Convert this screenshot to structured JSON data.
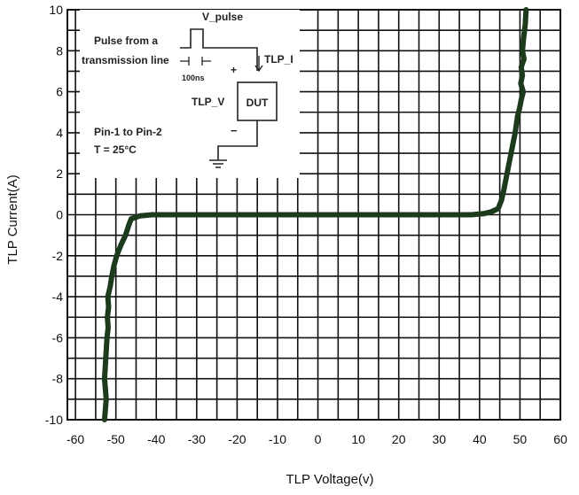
{
  "chart_data": {
    "type": "line",
    "xlabel": "TLP Voltage(v)",
    "ylabel": "TLP Current(A)",
    "xlim": [
      -62,
      60
    ],
    "ylim": [
      -10,
      10
    ],
    "xticks": [
      -60,
      -50,
      -40,
      -30,
      -20,
      -10,
      0,
      10,
      20,
      30,
      40,
      50,
      60
    ],
    "yticks": [
      10,
      8,
      6,
      4,
      2,
      0,
      -2,
      -4,
      -6,
      -8,
      -10
    ],
    "xtick_labels": [
      "-60",
      "-50",
      "-40",
      "-30",
      "-20",
      "-10",
      "0",
      "10",
      "20",
      "30",
      "40",
      "50",
      "60"
    ],
    "ytick_labels": [
      "10",
      "8",
      "6",
      "4",
      "2",
      "0",
      "-2",
      "-4",
      "-6",
      "-8",
      "-10"
    ],
    "x_minor_step": 5,
    "y_minor_step": 1,
    "grid": true,
    "line_color": "#1c3a1c",
    "series": [
      {
        "x": [
          -52.8,
          -52.4,
          -52.8,
          -52.5,
          -52.2,
          -51.9,
          -52.1,
          -51.8,
          -52.0,
          -51.4,
          -51.0,
          -50.5,
          -49.8,
          -48.8,
          -47.6,
          -46.8,
          -46.2,
          -44.0,
          -41.0,
          -38.0,
          -30.0,
          -20.0,
          -10.0,
          0.0,
          10.0,
          20.0,
          30.0,
          38.0,
          41.0,
          43.0,
          44.6,
          45.4,
          46.0,
          46.6,
          47.3,
          48.0,
          48.8,
          49.4,
          49.9,
          50.3,
          50.8,
          50.2,
          50.6,
          50.3,
          51.0,
          50.6,
          50.9,
          51.3,
          51.5
        ],
        "y": [
          -10.0,
          -9.0,
          -8.0,
          -7.0,
          -6.0,
          -5.5,
          -5.0,
          -4.5,
          -4.0,
          -3.5,
          -3.0,
          -2.5,
          -2.0,
          -1.5,
          -1.0,
          -0.5,
          -0.2,
          -0.05,
          0.0,
          0.0,
          0.0,
          0.0,
          0.0,
          0.0,
          0.0,
          0.0,
          0.0,
          0.0,
          0.05,
          0.15,
          0.3,
          0.7,
          1.2,
          1.8,
          2.5,
          3.2,
          4.0,
          4.8,
          5.2,
          5.6,
          6.0,
          6.4,
          6.8,
          7.2,
          7.6,
          8.0,
          8.6,
          9.3,
          10.0
        ]
      }
    ],
    "inset": {
      "title": "V_pulse",
      "source_label_1": "Pulse from a",
      "source_label_2": "transmission line",
      "pulse_width": "100ns",
      "current_label": "TLP_I",
      "voltage_label": "TLP_V",
      "plus": "+",
      "minus": "−",
      "device": "DUT",
      "note_1": "Pin-1 to Pin-2",
      "note_2": "T = 25°C"
    }
  }
}
